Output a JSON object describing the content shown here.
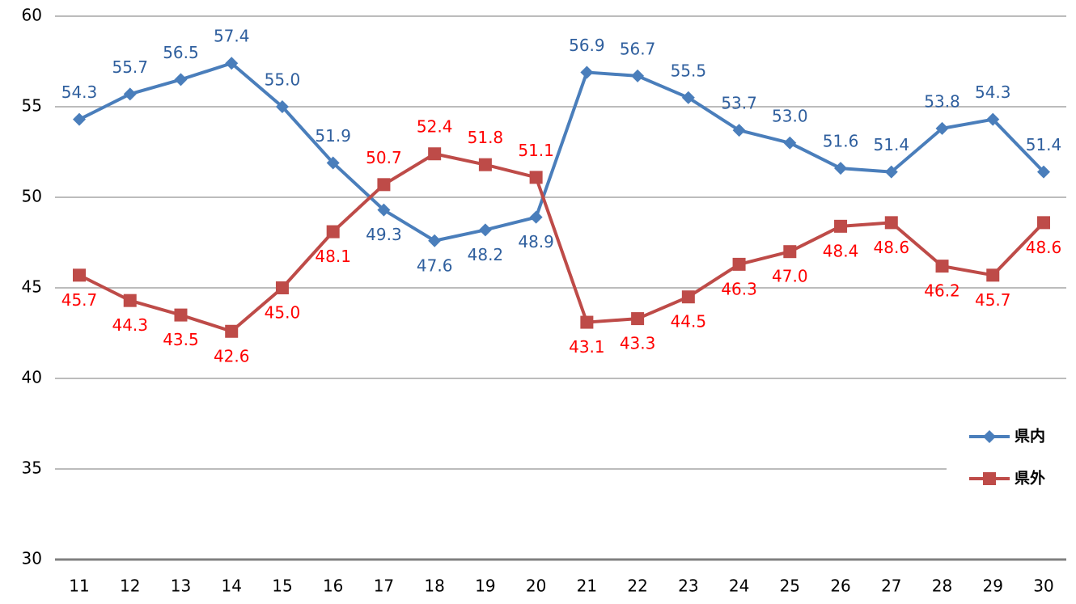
{
  "chart_data": {
    "type": "line",
    "categories": [
      "11",
      "12",
      "13",
      "14",
      "15",
      "16",
      "17",
      "18",
      "19",
      "20",
      "21",
      "22",
      "23",
      "24",
      "25",
      "26",
      "27",
      "28",
      "29",
      "30"
    ],
    "series": [
      {
        "name": "県内",
        "color": "#4a7ebb",
        "label_color": "#2f5f9e",
        "marker": "diamond",
        "values": [
          54.3,
          55.7,
          56.5,
          57.4,
          55.0,
          51.9,
          49.3,
          47.6,
          48.2,
          48.9,
          56.9,
          56.7,
          55.5,
          53.7,
          53.0,
          51.6,
          51.4,
          53.8,
          54.3,
          51.4
        ],
        "value_labels": [
          "54.3",
          "55.7",
          "56.5",
          "57.4",
          "55.0",
          "51.9",
          "49.3",
          "47.6",
          "48.2",
          "48.9",
          "56.9",
          "56.7",
          "55.5",
          "53.7",
          "53.0",
          "51.6",
          "51.4",
          "53.8",
          "54.3",
          "51.4"
        ]
      },
      {
        "name": "県外",
        "color": "#be4b48",
        "label_color": "#ff0000",
        "marker": "square",
        "values": [
          45.7,
          44.3,
          43.5,
          42.6,
          45.0,
          48.1,
          50.7,
          52.4,
          51.8,
          51.1,
          43.1,
          43.3,
          44.5,
          46.3,
          47.0,
          48.4,
          48.6,
          46.2,
          45.7,
          48.6
        ],
        "value_labels": [
          "45.7",
          "44.3",
          "43.5",
          "42.6",
          "45.0",
          "48.1",
          "50.7",
          "52.4",
          "51.8",
          "51.1",
          "43.1",
          "43.3",
          "44.5",
          "46.3",
          "47.0",
          "48.4",
          "48.6",
          "46.2",
          "45.7",
          "48.6"
        ]
      }
    ],
    "ylim": [
      30,
      60
    ],
    "yticks": [
      30,
      35,
      40,
      45,
      50,
      55,
      60
    ],
    "grid": true,
    "legend": "right"
  }
}
